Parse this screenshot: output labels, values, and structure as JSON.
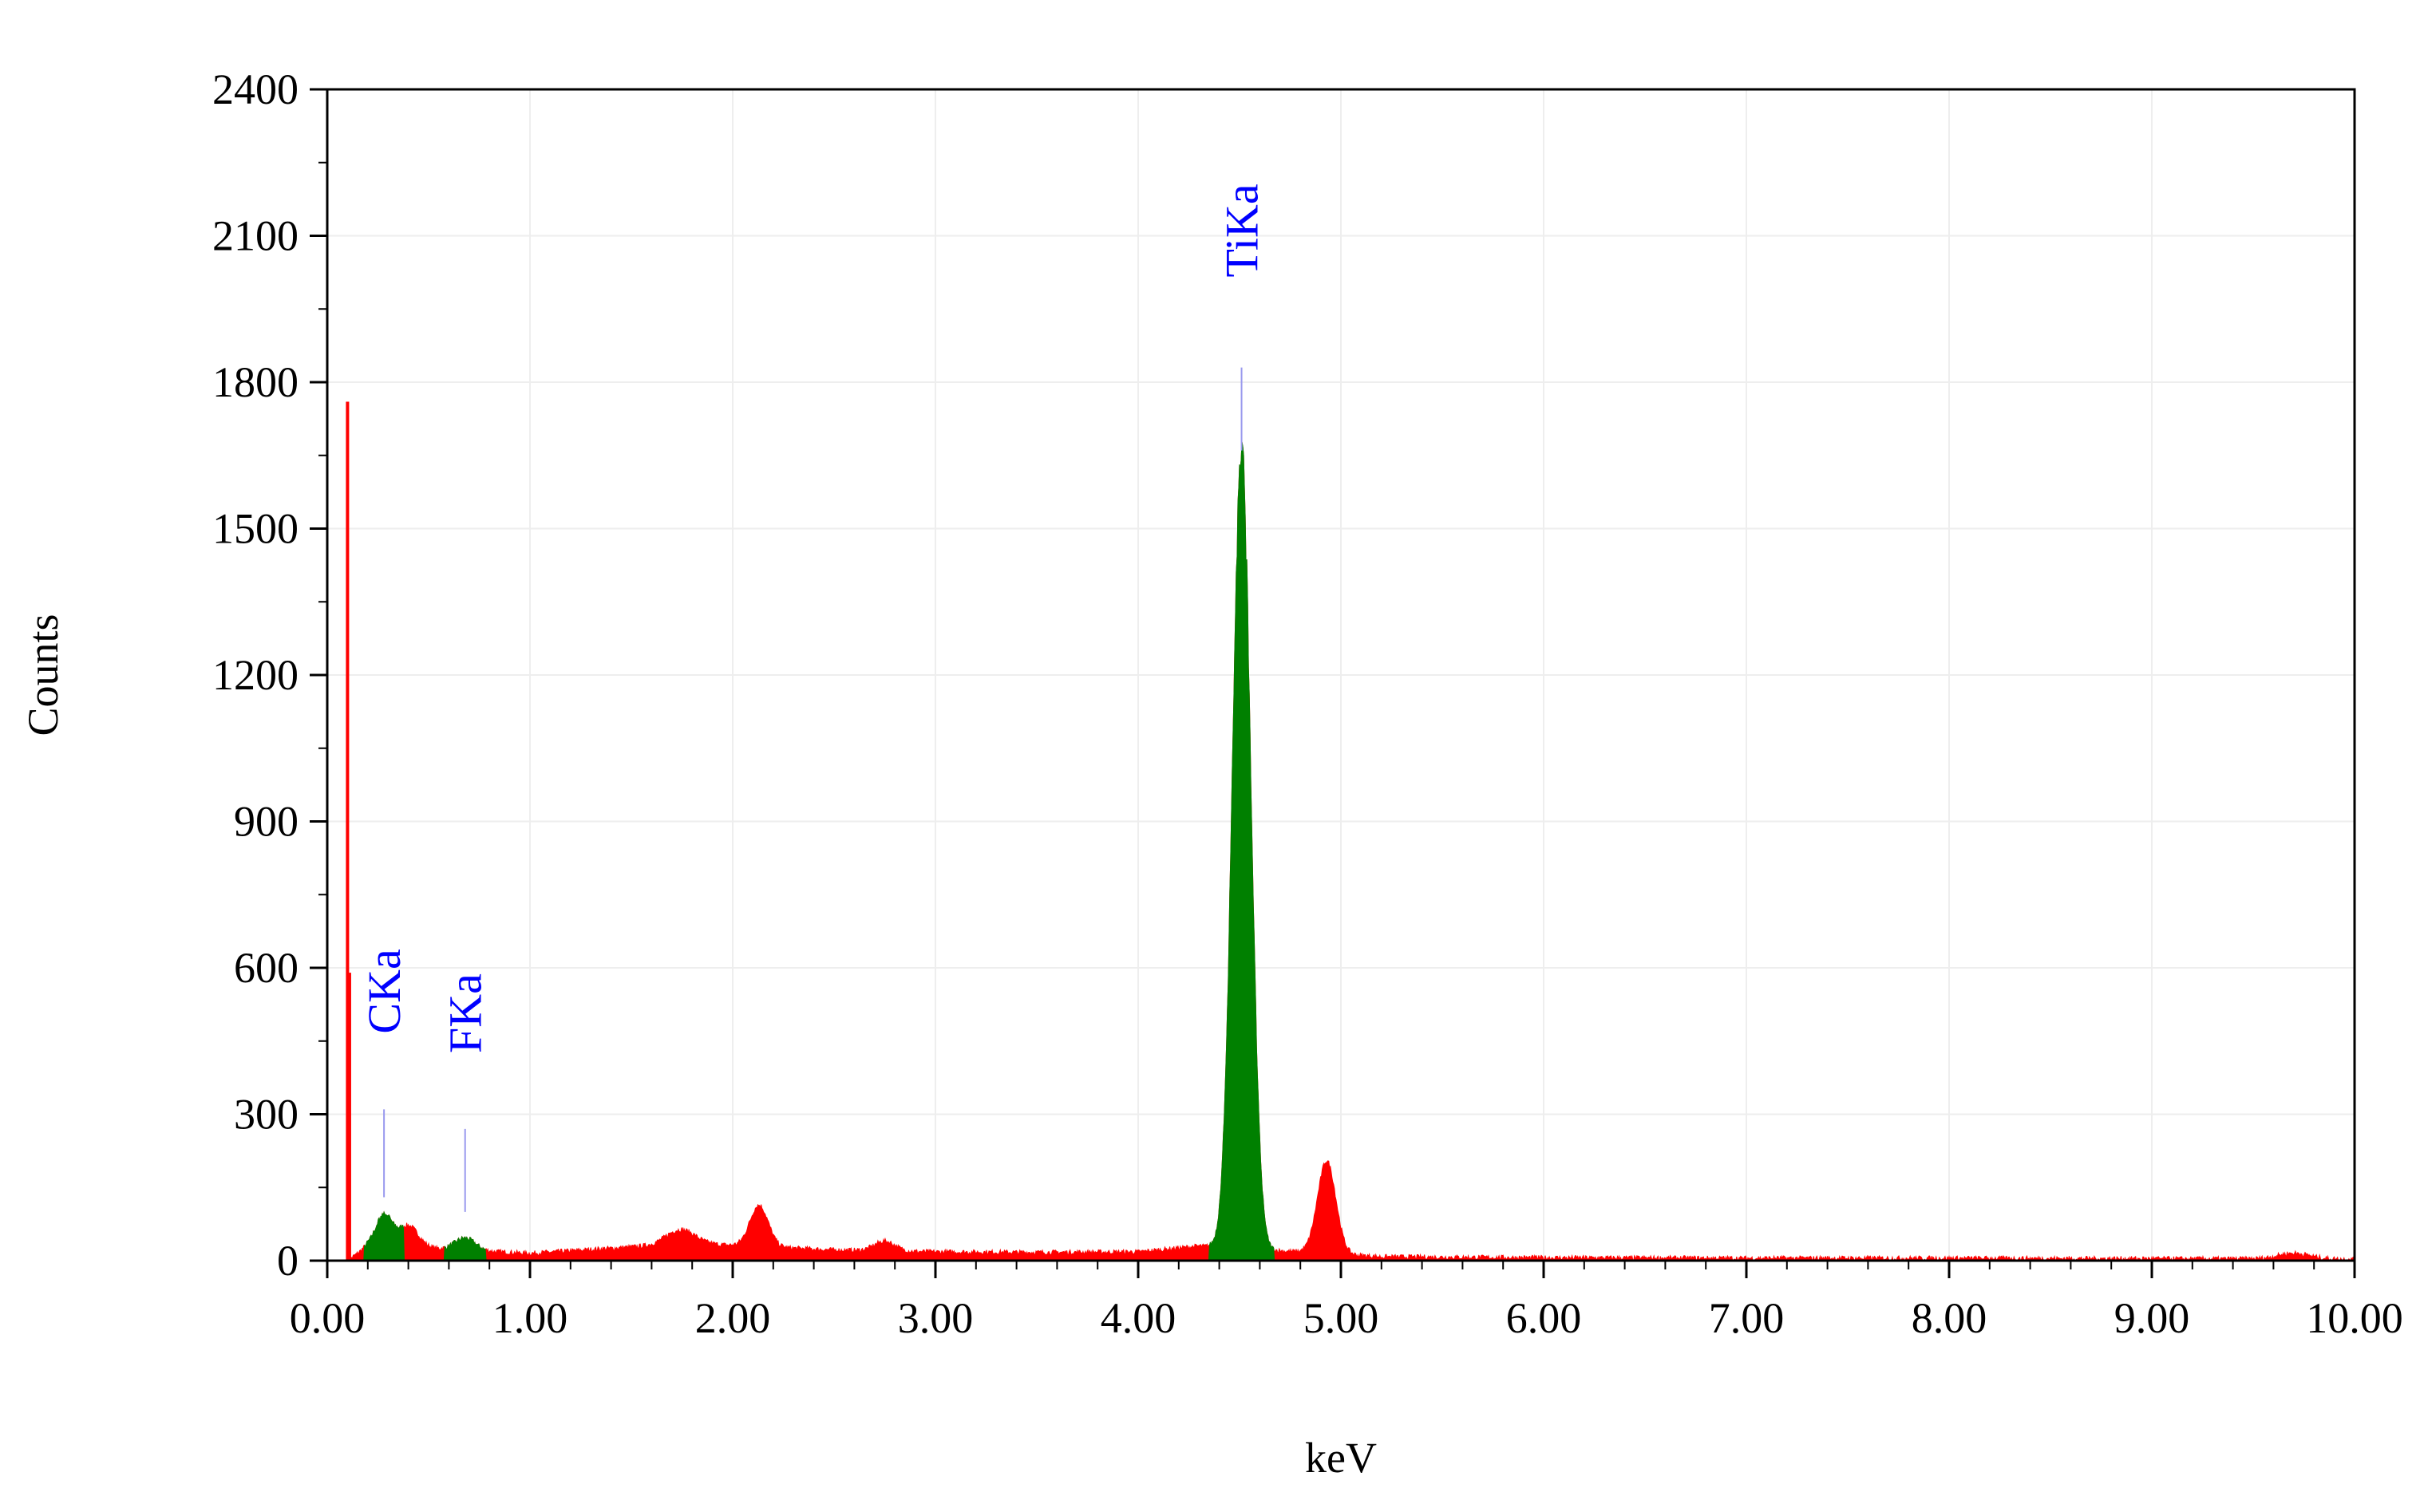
{
  "chart_data": {
    "type": "area",
    "xlabel": "keV",
    "ylabel": "Counts",
    "xlim": [
      0,
      10
    ],
    "ylim": [
      0,
      2400
    ],
    "x_ticks": [
      "0.00",
      "1.00",
      "2.00",
      "3.00",
      "4.00",
      "5.00",
      "6.00",
      "7.00",
      "8.00",
      "9.00",
      "10.00"
    ],
    "y_ticks": [
      "0",
      "300",
      "600",
      "900",
      "1200",
      "1500",
      "1800",
      "2100",
      "2400"
    ],
    "grid": true,
    "colors": {
      "spectrum": "#ff0000",
      "identified": "#008000",
      "label": "#0000ff",
      "marker": "#9999ee"
    },
    "spectrum": {
      "baseline": [
        [
          0.1,
          0
        ],
        [
          0.2,
          30
        ],
        [
          0.5,
          25
        ],
        [
          1.0,
          15
        ],
        [
          1.5,
          28
        ],
        [
          1.8,
          35
        ],
        [
          2.5,
          22
        ],
        [
          3.0,
          18
        ],
        [
          3.5,
          17
        ],
        [
          4.0,
          18
        ],
        [
          4.3,
          30
        ],
        [
          5.2,
          8
        ],
        [
          6.0,
          6
        ],
        [
          7.0,
          5
        ],
        [
          8.0,
          5
        ],
        [
          9.0,
          4
        ],
        [
          10.0,
          3
        ]
      ],
      "spikes": [
        {
          "x": 0.1,
          "y": 1760
        },
        {
          "x": 0.11,
          "y": 590
        }
      ],
      "peaks": [
        {
          "x": 0.4,
          "y": 45,
          "width": 0.05
        },
        {
          "x": 1.74,
          "y": 30,
          "width": 0.07
        },
        {
          "x": 2.13,
          "y": 85,
          "width": 0.045
        },
        {
          "x": 2.75,
          "y": 20,
          "width": 0.05
        },
        {
          "x": 4.93,
          "y": 190,
          "width": 0.045
        },
        {
          "x": 9.7,
          "y": 12,
          "width": 0.08
        }
      ],
      "identified_peaks": [
        {
          "x": 0.28,
          "y": 65,
          "width": 0.04
        },
        {
          "x": 0.68,
          "y": 25,
          "width": 0.05
        },
        {
          "x": 4.51,
          "y": 1630,
          "width": 0.045
        }
      ]
    },
    "annotations": [
      {
        "text": "CKa",
        "x": 0.28,
        "y_top": 600,
        "line_from": 130,
        "line_to": 310
      },
      {
        "text": "FKa",
        "x": 0.68,
        "y_top": 560,
        "line_from": 100,
        "line_to": 270
      },
      {
        "text": "TiKa",
        "x": 4.51,
        "y_top": 2150,
        "line_from": 1660,
        "line_to": 1830
      }
    ]
  }
}
